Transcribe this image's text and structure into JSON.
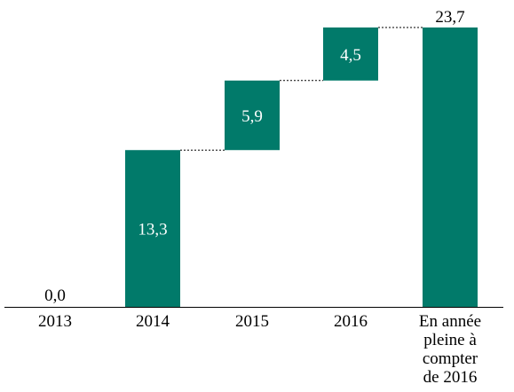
{
  "chart_data": {
    "type": "bar",
    "subtype": "waterfall",
    "categories": [
      "2013",
      "2014",
      "2015",
      "2016",
      "En année pleine à compter de 2016"
    ],
    "category_lines": [
      [
        "2013"
      ],
      [
        "2014"
      ],
      [
        "2015"
      ],
      [
        "2016"
      ],
      [
        "En année",
        "pleine à",
        "compter",
        "de 2016"
      ]
    ],
    "values": [
      0.0,
      13.3,
      5.9,
      4.5,
      23.7
    ],
    "value_labels": [
      "0,0",
      "13,3",
      "5,9",
      "4,5",
      "23,7"
    ],
    "bar_kinds": [
      "total",
      "increment",
      "increment",
      "increment",
      "total"
    ],
    "title": "",
    "xlabel": "",
    "ylabel": "",
    "ylim": [
      0,
      23.7
    ],
    "grid": false,
    "legend": "none",
    "connectors": "dotted",
    "colors": {
      "bar": "#017a6a",
      "axis": "#000000",
      "connector": "#000000",
      "label_inside": "#ffffff",
      "label_outside": "#000000"
    }
  }
}
